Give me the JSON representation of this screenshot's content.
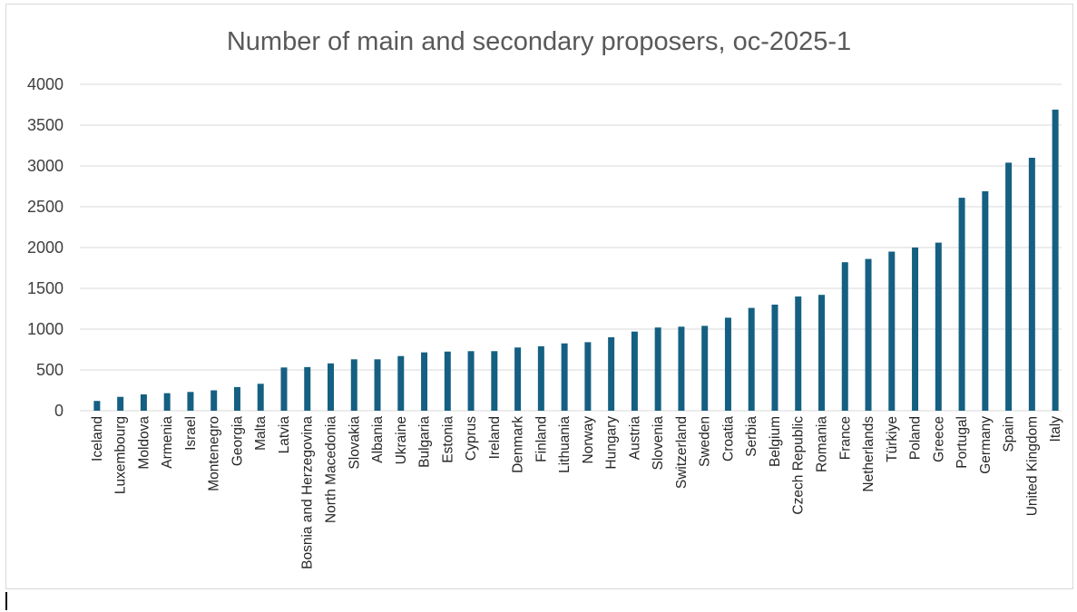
{
  "chart_data": {
    "type": "bar",
    "title": "Number of main and secondary proposers, oc-2025-1",
    "xlabel": "",
    "ylabel": "",
    "ylim": [
      0,
      4000
    ],
    "yticks": [
      0,
      500,
      1000,
      1500,
      2000,
      2500,
      3000,
      3500,
      4000
    ],
    "grid": true,
    "legend": "none",
    "bar_color": "#156082",
    "categories": [
      "Iceland",
      "Luxembourg",
      "Moldova",
      "Armenia",
      "Israel",
      "Montenegro",
      "Georgia",
      "Malta",
      "Latvia",
      "Bosnia and Herzegovina",
      "North Macedonia",
      "Slovakia",
      "Albania",
      "Ukraine",
      "Bulgaria",
      "Estonia",
      "Cyprus",
      "Ireland",
      "Denmark",
      "Finland",
      "Lithuania",
      "Norway",
      "Hungary",
      "Austria",
      "Slovenia",
      "Switzerland",
      "Sweden",
      "Croatia",
      "Serbia",
      "Belgium",
      "Czech Republic",
      "Romania",
      "France",
      "Netherlands",
      "Türkiye",
      "Poland",
      "Greece",
      "Portugal",
      "Germany",
      "Spain",
      "United Kingdom",
      "Italy"
    ],
    "values": [
      120,
      170,
      200,
      215,
      230,
      250,
      290,
      330,
      530,
      535,
      580,
      630,
      630,
      670,
      715,
      725,
      730,
      730,
      775,
      790,
      825,
      840,
      900,
      970,
      1020,
      1030,
      1040,
      1140,
      1260,
      1300,
      1400,
      1420,
      1820,
      1860,
      1950,
      2000,
      2060,
      2610,
      2690,
      3040,
      3100,
      3690
    ]
  }
}
